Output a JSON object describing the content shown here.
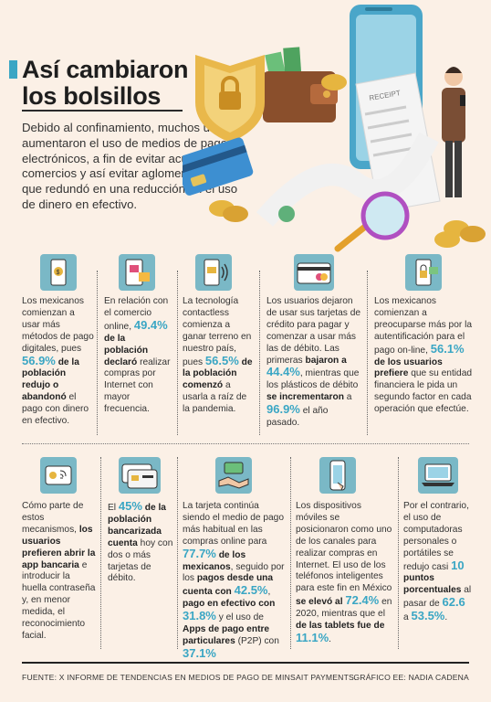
{
  "header": {
    "title_line1": "Así cambiaron",
    "title_line2": "los bolsillos",
    "intro": "Debido al confinamiento, muchos usuarios aumentaron el uso de medios de pago electrónicos, a fin de evitar acudir a los comercios y así evitar aglomeraciones, lo que redundó en una reducción en el uso de dinero en efectivo."
  },
  "hero": {
    "receipt_label": "RECEIPT"
  },
  "row1": [
    {
      "icon": "phone-pay-icon",
      "p1": "Los mexicanos comienzan a usar más métodos de pago digitales, pues ",
      "pct": "56.9%",
      "b1": " de la población redujo o abandonó",
      "p2": " el pago con dinero en efectivo."
    },
    {
      "icon": "phone-shop-icon",
      "p1": "En relación con el comercio online, ",
      "pct": "49.4%",
      "b1": " de la población declaró",
      "p2": " realizar compras por Internet con mayor frecuencia."
    },
    {
      "icon": "contactless-card-icon",
      "p1": "La tecnología contactless comienza a ganar terreno en nuestro país, pues ",
      "pct": "56.5%",
      "b1": " de la población comenzó",
      "p2": " a usarla a raíz de la pandemia."
    },
    {
      "icon": "credit-card-icon",
      "p1": "Los usuarios dejaron de usar sus tarjetas de crédito para pagar y comenzar a usar más las de débito. Las primeras ",
      "b0": "bajaron a ",
      "pct": "44.4%",
      "p2": ", mientras que los plásticos de débito ",
      "b1": "se incrementaron",
      "p3": " a ",
      "pct2": "96.9%",
      "p4": " el año pasado."
    },
    {
      "icon": "secure-phone-icon",
      "p1": "Los mexicanos comienzan a preocuparse más por la autentificación para el pago on-line, ",
      "pct": "56.1%",
      "b1": " de los usuarios prefiere",
      "p2": " que su entidad financiera le pida un segundo factor en cada operación que efectúe."
    }
  ],
  "row2": [
    {
      "icon": "id-fingerprint-icon",
      "p1": "Cómo parte de estos mecanismos, ",
      "b1": "los usuarios prefieren abrir la app bancaria",
      "p2": " e introducir la huella contraseña y, en menor medida, el reconocimiento facial."
    },
    {
      "icon": "bank-cards-icon",
      "p0": "El ",
      "pct": "45%",
      "b1": " de la población bancarizada cuenta",
      "p2": " hoy con dos o más tarjetas de débito."
    },
    {
      "icon": "card-handshake-icon",
      "p1": "La tarjeta continúa siendo el medio de pago más habitual en las compras online para ",
      "pct": "77.7%",
      "b1": " de los mexicanos",
      "p2": ", seguido por los ",
      "b2": "pagos desde una cuenta con",
      "sp": " ",
      "pct2": "42.5%",
      "p3": ", ",
      "b3": "pago en efectivo con",
      "sp2": " ",
      "pct3": "31.8%",
      "p4": " y el uso de ",
      "b4": "Apps de pago entre particulares",
      "p5": " (P2P) con ",
      "pct4": "37.1%"
    },
    {
      "icon": "mobile-device-icon",
      "p1": "Los dispositivos móviles se posicionaron como uno de los canales para realizar compras en Internet. El uso de los teléfonos inteligentes para este fin en México ",
      "b1": "se elevó al ",
      "pct": "72.4%",
      "p2": " en 2020, mientras que el ",
      "b2": "de las tablets fue de ",
      "pct2": "11.1%",
      "p3": "."
    },
    {
      "icon": "laptop-icon",
      "p1": "Por el contrario, el uso de computadoras personales o portátiles se redujo casi ",
      "pct": "10",
      "b1": " puntos porcentuales",
      "p2": " al pasar de ",
      "pct2": "62.6",
      "p3": " a ",
      "pct3": "53.5%",
      "p4": "."
    }
  ],
  "footer": {
    "source": "FUENTE: X INFORME DE TENDENCIAS EN MEDIOS DE PAGO DE MINSAIT PAYMENTS.",
    "credit": "GRÁFICO EE: NADIA CADENA"
  },
  "colors": {
    "accent": "#3aa6c4",
    "icon_bg": "#7ab8c6",
    "background": "#fbf0e6"
  }
}
